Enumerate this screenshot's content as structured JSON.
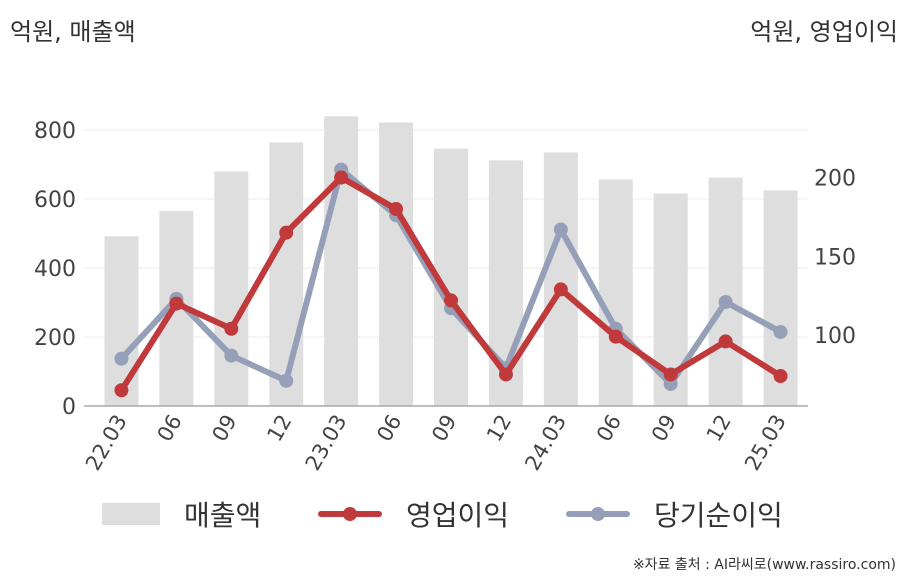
{
  "units": {
    "left": "억원, 매출액",
    "right": "억원, 영업이익"
  },
  "legend": {
    "revenue": "매출액",
    "operating": "영업이익",
    "net": "당기순이익"
  },
  "source": "※자료 출처 : AI라씨로(www.rassiro.com)",
  "colors": {
    "revenue": "#dedede",
    "operating": "#c0393b",
    "net": "#95a0b8",
    "grid": "#ebebeb",
    "axis": "#aaaaaa"
  },
  "chart_data": {
    "type": "bar",
    "categories": [
      "22.03",
      "06",
      "09",
      "12",
      "23.03",
      "06",
      "09",
      "12",
      "24.03",
      "06",
      "09",
      "12",
      "25.03"
    ],
    "left_axis": {
      "ticks": [
        "0",
        "200",
        "400",
        "600",
        "800"
      ],
      "ylim": [
        0,
        800
      ]
    },
    "right_axis": {
      "ticks": [
        "100",
        "150",
        "200"
      ],
      "ylim": [
        55,
        220
      ]
    },
    "series": [
      {
        "name": "매출액",
        "type": "bar",
        "axis": "left",
        "values": [
          492,
          565,
          680,
          764,
          840,
          822,
          746,
          712,
          735,
          657,
          616,
          662,
          625
        ]
      },
      {
        "name": "영업이익",
        "type": "line",
        "axis": "right",
        "values": [
          65,
          120,
          104,
          165,
          200,
          180,
          122,
          75,
          129,
          99,
          75,
          96,
          74
        ]
      },
      {
        "name": "당기순이익",
        "type": "line",
        "axis": "right",
        "values": [
          85,
          123,
          87,
          71,
          205,
          176,
          117,
          79,
          167,
          104,
          69,
          121,
          102
        ]
      }
    ],
    "grid": true,
    "legend_position": "bottom"
  }
}
